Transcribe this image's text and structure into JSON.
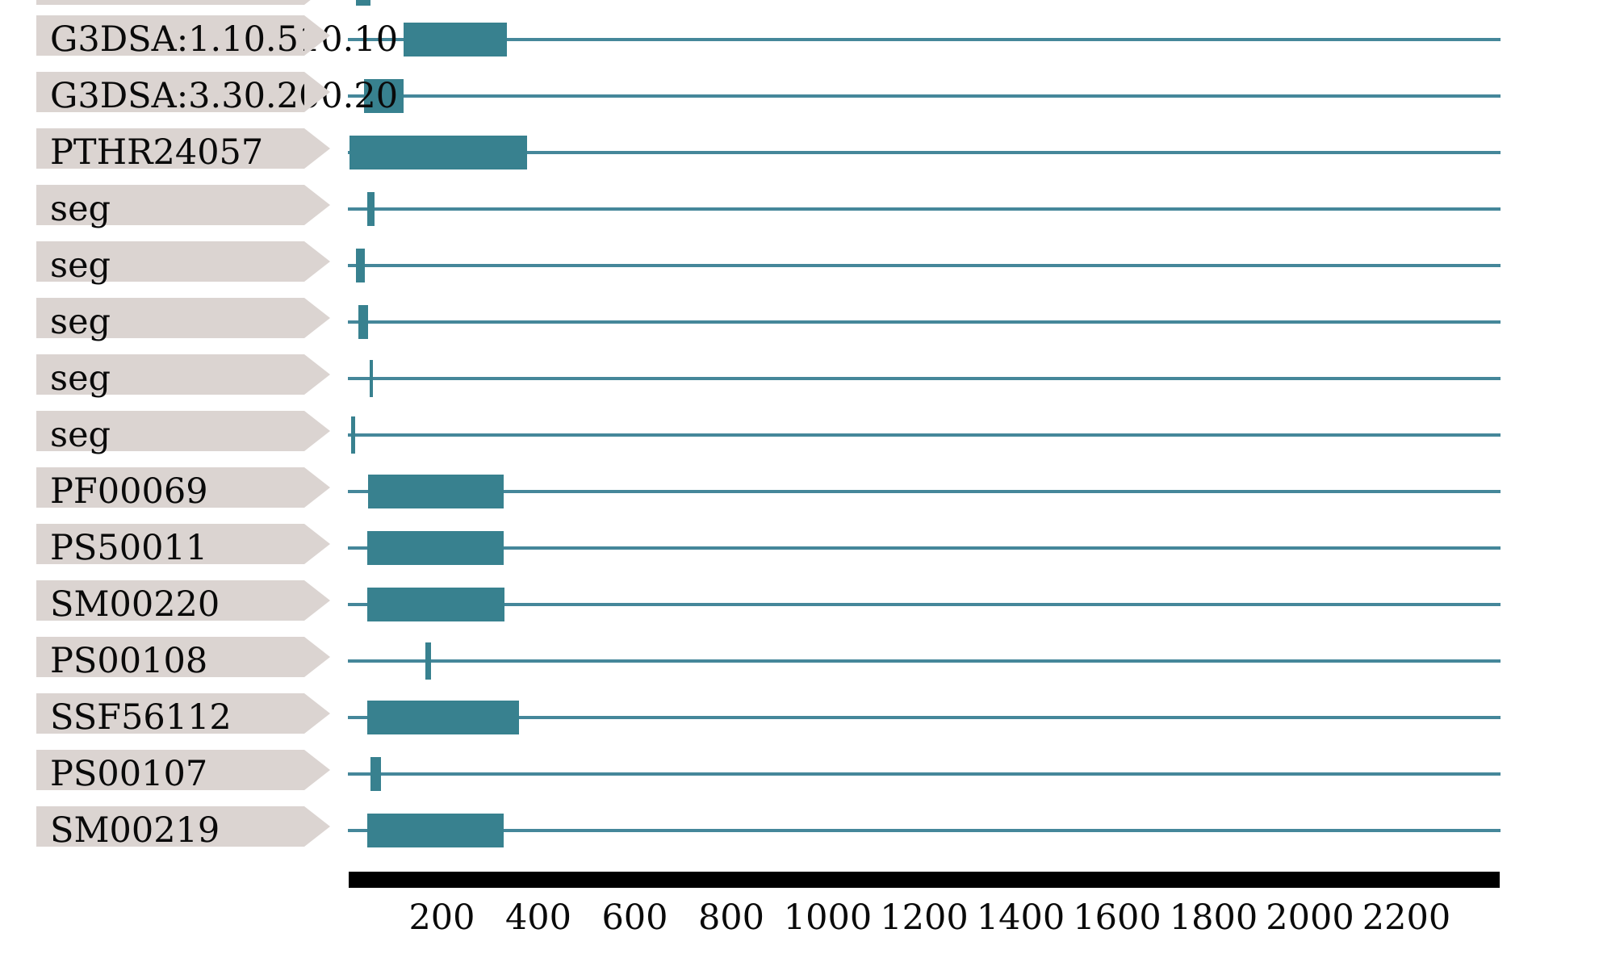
{
  "figure": {
    "description": "Protein sequence feature tracks (domain match diagram)",
    "colors": {
      "feature_teal": "#38818F",
      "track_line_teal": "#45879A",
      "label_box_grey": "#DBD4D1",
      "label_text": "#0a0a0a",
      "axis_bar_black": "#000000",
      "background": "#ffffff"
    }
  },
  "tracks": [
    {
      "label": "",
      "partial": true,
      "features": [
        {
          "start": 15,
          "end": 45
        }
      ]
    },
    {
      "label": "G3DSA:1.10.510.10",
      "partial": false,
      "features": [
        {
          "start": 114,
          "end": 328
        }
      ]
    },
    {
      "label": "G3DSA:3.30.200.20",
      "partial": false,
      "features": [
        {
          "start": 32,
          "end": 114
        }
      ]
    },
    {
      "label": "PTHR24057",
      "partial": false,
      "features": [
        {
          "start": 2,
          "end": 370
        }
      ]
    },
    {
      "label": "seg",
      "partial": false,
      "features": [
        {
          "start": 38,
          "end": 54
        }
      ]
    },
    {
      "label": "seg",
      "partial": false,
      "features": [
        {
          "start": 15,
          "end": 33
        }
      ]
    },
    {
      "label": "seg",
      "partial": false,
      "features": [
        {
          "start": 20,
          "end": 40
        }
      ]
    },
    {
      "label": "seg",
      "partial": false,
      "features": [
        {
          "start": 44,
          "end": 50
        }
      ]
    },
    {
      "label": "seg",
      "partial": false,
      "features": [
        {
          "start": 5,
          "end": 13
        }
      ]
    },
    {
      "label": "PF00069",
      "partial": false,
      "features": [
        {
          "start": 40,
          "end": 321
        }
      ]
    },
    {
      "label": "PS50011",
      "partial": false,
      "features": [
        {
          "start": 38,
          "end": 321
        }
      ]
    },
    {
      "label": "SM00220",
      "partial": false,
      "features": [
        {
          "start": 38,
          "end": 323
        }
      ]
    },
    {
      "label": "PS00108",
      "partial": false,
      "features": [
        {
          "start": 159,
          "end": 171
        }
      ]
    },
    {
      "label": "SSF56112",
      "partial": false,
      "features": [
        {
          "start": 38,
          "end": 353
        }
      ]
    },
    {
      "label": "PS00107",
      "partial": false,
      "features": [
        {
          "start": 45,
          "end": 67
        }
      ]
    },
    {
      "label": "SM00219",
      "partial": false,
      "features": [
        {
          "start": 38,
          "end": 321
        }
      ]
    }
  ],
  "axis": {
    "tick_values": [
      200,
      400,
      600,
      800,
      1000,
      1200,
      1400,
      1600,
      1800,
      2000,
      2200
    ],
    "sequence_length": 2388
  }
}
